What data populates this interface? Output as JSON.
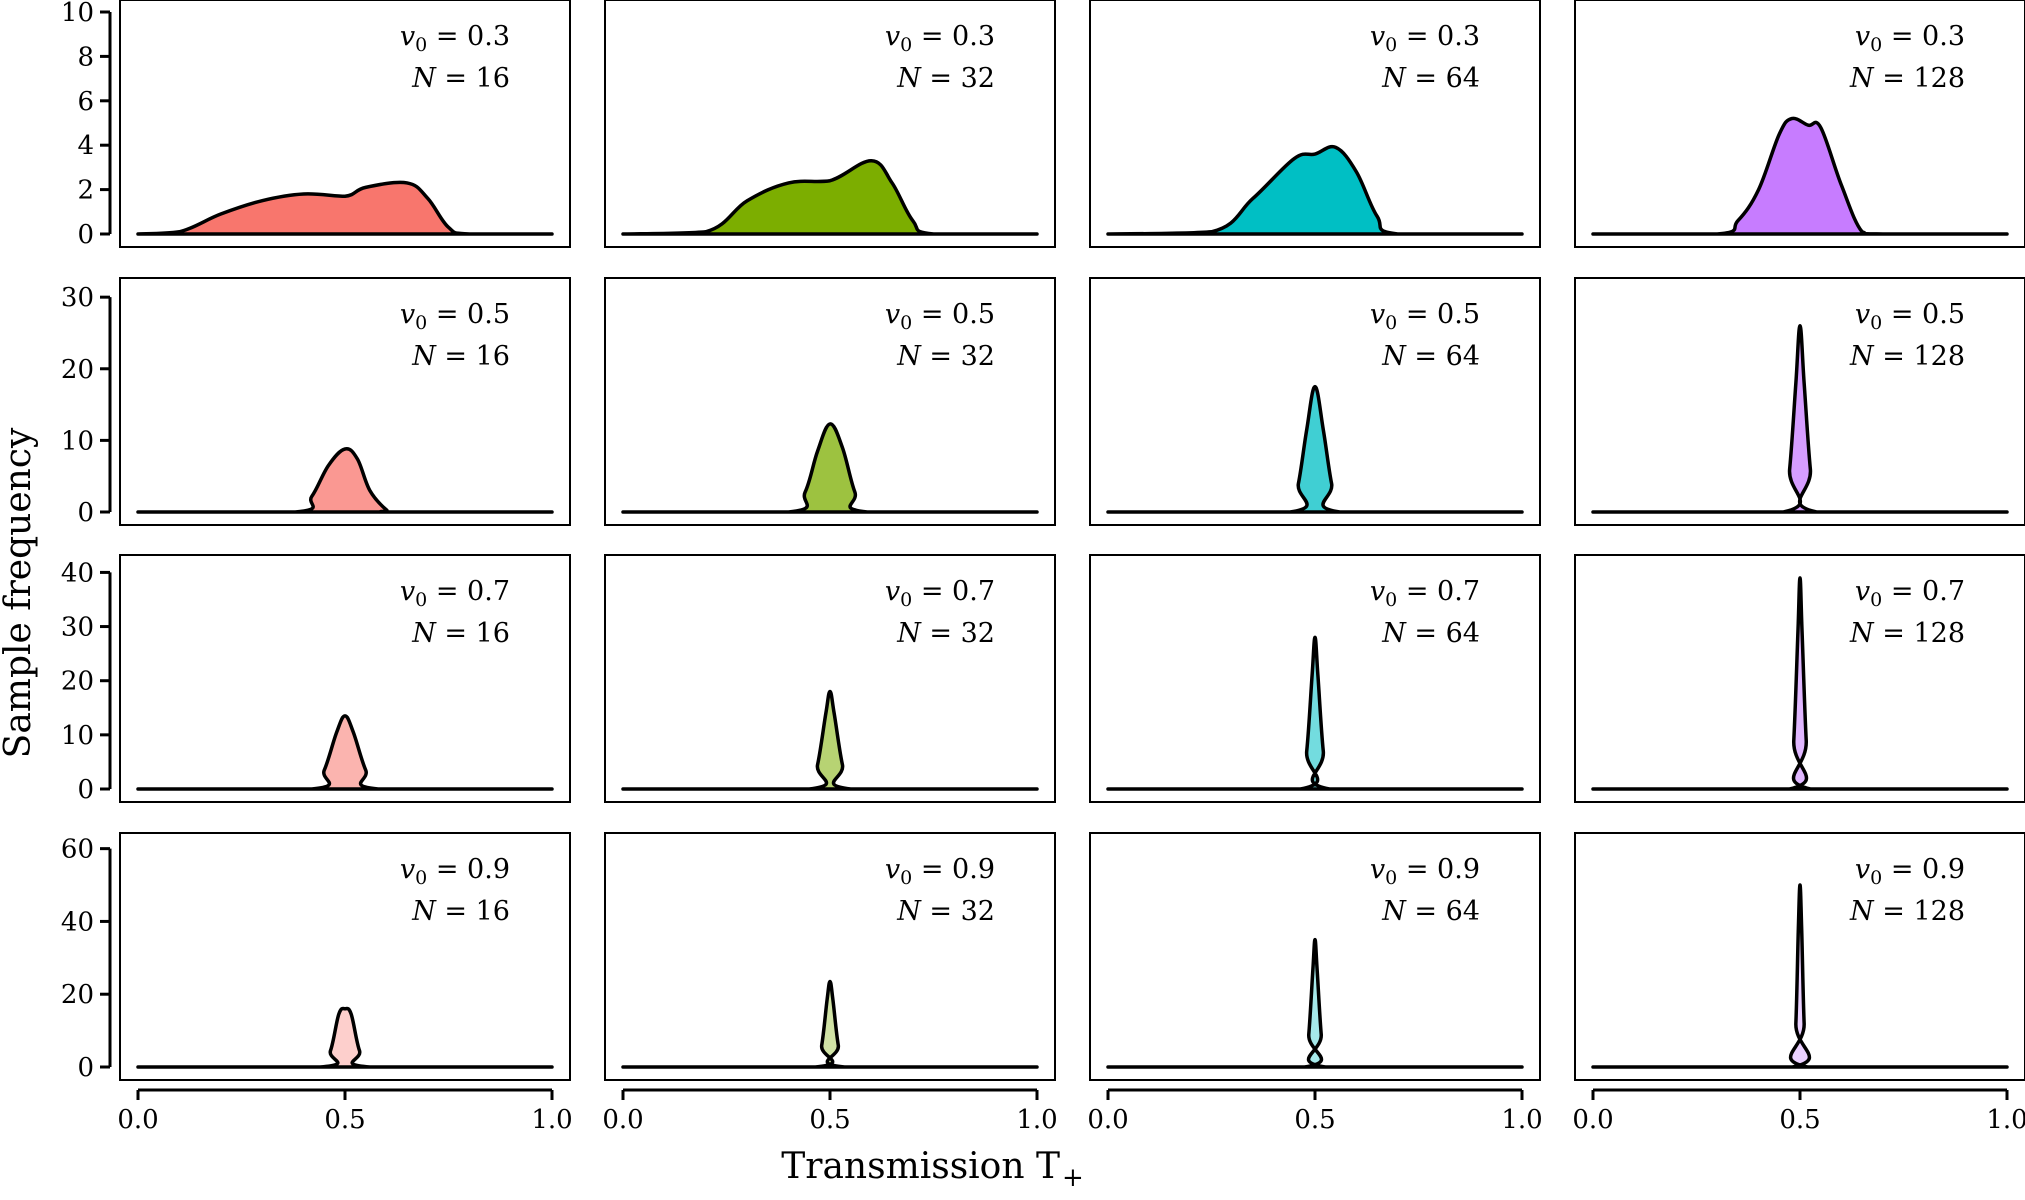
{
  "figure": {
    "ylabel": "Sample frequency",
    "xlabel_main": "Transmission T",
    "xlabel_sub": "+"
  },
  "chart_data": {
    "type": "area",
    "title": "",
    "xlabel": "Transmission T+",
    "ylabel": "Sample frequency",
    "xlim": [
      0.0,
      1.0
    ],
    "x_ticks": [
      "0.0",
      "0.5",
      "1.0"
    ],
    "columns_N": [
      16,
      32,
      64,
      128
    ],
    "column_colors": [
      "#F8766D",
      "#7CAE00",
      "#00BFC4",
      "#C77CFF"
    ],
    "rows": [
      {
        "v0": "0.3",
        "ylim": [
          0,
          10
        ],
        "yticks": [
          "0",
          "2",
          "4",
          "6",
          "8",
          "10"
        ],
        "fill_opacity": 1.0,
        "panels": [
          {
            "N": "16",
            "points": [
              [
                0.0,
                0
              ],
              [
                0.1,
                0.1
              ],
              [
                0.2,
                0.9
              ],
              [
                0.3,
                1.5
              ],
              [
                0.4,
                1.8
              ],
              [
                0.5,
                1.7
              ],
              [
                0.55,
                2.1
              ],
              [
                0.65,
                2.3
              ],
              [
                0.7,
                1.6
              ],
              [
                0.75,
                0.3
              ],
              [
                0.8,
                0
              ],
              [
                1.0,
                0
              ]
            ]
          },
          {
            "N": "32",
            "points": [
              [
                0.0,
                0
              ],
              [
                0.2,
                0.1
              ],
              [
                0.3,
                1.5
              ],
              [
                0.4,
                2.3
              ],
              [
                0.5,
                2.4
              ],
              [
                0.6,
                3.3
              ],
              [
                0.65,
                2.3
              ],
              [
                0.7,
                0.6
              ],
              [
                0.75,
                0
              ],
              [
                1.0,
                0
              ]
            ]
          },
          {
            "N": "64",
            "points": [
              [
                0.0,
                0
              ],
              [
                0.25,
                0.1
              ],
              [
                0.35,
                1.6
              ],
              [
                0.45,
                3.4
              ],
              [
                0.5,
                3.6
              ],
              [
                0.55,
                3.9
              ],
              [
                0.6,
                2.8
              ],
              [
                0.65,
                0.8
              ],
              [
                0.7,
                0
              ],
              [
                1.0,
                0
              ]
            ]
          },
          {
            "N": "128",
            "points": [
              [
                0.0,
                0
              ],
              [
                0.3,
                0
              ],
              [
                0.35,
                0.6
              ],
              [
                0.4,
                2.0
              ],
              [
                0.45,
                4.5
              ],
              [
                0.48,
                5.2
              ],
              [
                0.52,
                4.9
              ],
              [
                0.55,
                4.8
              ],
              [
                0.6,
                2.2
              ],
              [
                0.65,
                0.1
              ],
              [
                0.7,
                0
              ],
              [
                1.0,
                0
              ]
            ]
          }
        ]
      },
      {
        "v0": "0.5",
        "ylim": [
          0,
          31
        ],
        "yticks": [
          "0",
          "10",
          "20",
          "30"
        ],
        "fill_opacity": 0.75,
        "panels": [
          {
            "N": "16",
            "points": [
              [
                0.0,
                0
              ],
              [
                0.38,
                0
              ],
              [
                0.42,
                2.2
              ],
              [
                0.46,
                6.5
              ],
              [
                0.5,
                8.8
              ],
              [
                0.53,
                7.4
              ],
              [
                0.56,
                3.0
              ],
              [
                0.6,
                0.3
              ],
              [
                0.62,
                0
              ],
              [
                1.0,
                0
              ]
            ]
          },
          {
            "N": "32",
            "points": [
              [
                0.0,
                0
              ],
              [
                0.4,
                0
              ],
              [
                0.44,
                2.8
              ],
              [
                0.47,
                8.5
              ],
              [
                0.5,
                12.3
              ],
              [
                0.53,
                9.0
              ],
              [
                0.56,
                2.8
              ],
              [
                0.59,
                0
              ],
              [
                1.0,
                0
              ]
            ]
          },
          {
            "N": "64",
            "points": [
              [
                0.0,
                0
              ],
              [
                0.44,
                0
              ],
              [
                0.46,
                4.0
              ],
              [
                0.48,
                11.5
              ],
              [
                0.5,
                17.5
              ],
              [
                0.52,
                11.5
              ],
              [
                0.54,
                4.0
              ],
              [
                0.56,
                0
              ],
              [
                1.0,
                0
              ]
            ]
          },
          {
            "N": "128",
            "points": [
              [
                0.0,
                0
              ],
              [
                0.46,
                0
              ],
              [
                0.475,
                6.0
              ],
              [
                0.49,
                18.0
              ],
              [
                0.5,
                26.0
              ],
              [
                0.51,
                18.0
              ],
              [
                0.525,
                6.0
              ],
              [
                0.54,
                0
              ],
              [
                1.0,
                0
              ]
            ]
          }
        ]
      },
      {
        "v0": "0.7",
        "ylim": [
          0,
          41
        ],
        "yticks": [
          "0",
          "10",
          "20",
          "30",
          "40"
        ],
        "fill_opacity": 0.55,
        "panels": [
          {
            "N": "16",
            "points": [
              [
                0.0,
                0
              ],
              [
                0.42,
                0
              ],
              [
                0.45,
                3.5
              ],
              [
                0.48,
                10.5
              ],
              [
                0.5,
                13.5
              ],
              [
                0.52,
                10.5
              ],
              [
                0.55,
                3.5
              ],
              [
                0.58,
                0
              ],
              [
                1.0,
                0
              ]
            ]
          },
          {
            "N": "32",
            "points": [
              [
                0.0,
                0
              ],
              [
                0.45,
                0
              ],
              [
                0.47,
                4.5
              ],
              [
                0.49,
                14.0
              ],
              [
                0.5,
                18.0
              ],
              [
                0.51,
                14.0
              ],
              [
                0.53,
                4.5
              ],
              [
                0.55,
                0
              ],
              [
                1.0,
                0
              ]
            ]
          },
          {
            "N": "64",
            "points": [
              [
                0.0,
                0
              ],
              [
                0.465,
                0
              ],
              [
                0.48,
                7.0
              ],
              [
                0.493,
                21.0
              ],
              [
                0.5,
                28.0
              ],
              [
                0.507,
                21.0
              ],
              [
                0.52,
                7.0
              ],
              [
                0.535,
                0
              ],
              [
                1.0,
                0
              ]
            ]
          },
          {
            "N": "128",
            "points": [
              [
                0.0,
                0
              ],
              [
                0.475,
                0
              ],
              [
                0.485,
                9.0
              ],
              [
                0.495,
                29.0
              ],
              [
                0.5,
                39.0
              ],
              [
                0.505,
                29.0
              ],
              [
                0.515,
                9.0
              ],
              [
                0.525,
                0
              ],
              [
                1.0,
                0
              ]
            ]
          }
        ]
      },
      {
        "v0": "0.9",
        "ylim": [
          0,
          61
        ],
        "yticks": [
          "0",
          "20",
          "40",
          "60"
        ],
        "fill_opacity": 0.35,
        "panels": [
          {
            "N": "16",
            "points": [
              [
                0.0,
                0
              ],
              [
                0.44,
                0
              ],
              [
                0.465,
                4.5
              ],
              [
                0.485,
                14.5
              ],
              [
                0.5,
                16.0
              ],
              [
                0.515,
                14.5
              ],
              [
                0.535,
                4.5
              ],
              [
                0.56,
                0
              ],
              [
                1.0,
                0
              ]
            ]
          },
          {
            "N": "32",
            "points": [
              [
                0.0,
                0
              ],
              [
                0.465,
                0
              ],
              [
                0.48,
                6.0
              ],
              [
                0.493,
                18.5
              ],
              [
                0.5,
                23.5
              ],
              [
                0.507,
                18.5
              ],
              [
                0.52,
                6.0
              ],
              [
                0.535,
                0
              ],
              [
                1.0,
                0
              ]
            ]
          },
          {
            "N": "64",
            "points": [
              [
                0.0,
                0
              ],
              [
                0.475,
                0
              ],
              [
                0.485,
                9.0
              ],
              [
                0.495,
                27.0
              ],
              [
                0.5,
                35.0
              ],
              [
                0.505,
                27.0
              ],
              [
                0.515,
                9.0
              ],
              [
                0.525,
                0
              ],
              [
                1.0,
                0
              ]
            ]
          },
          {
            "N": "128",
            "points": [
              [
                0.0,
                0
              ],
              [
                0.482,
                0
              ],
              [
                0.49,
                12.0
              ],
              [
                0.496,
                38.0
              ],
              [
                0.5,
                50.0
              ],
              [
                0.504,
                38.0
              ],
              [
                0.51,
                12.0
              ],
              [
                0.518,
                0
              ],
              [
                1.0,
                0
              ]
            ]
          }
        ]
      }
    ],
    "annotation": {
      "v_symbol": "v",
      "v_sub": "0",
      "n_symbol": "N",
      "eq": " = "
    }
  }
}
